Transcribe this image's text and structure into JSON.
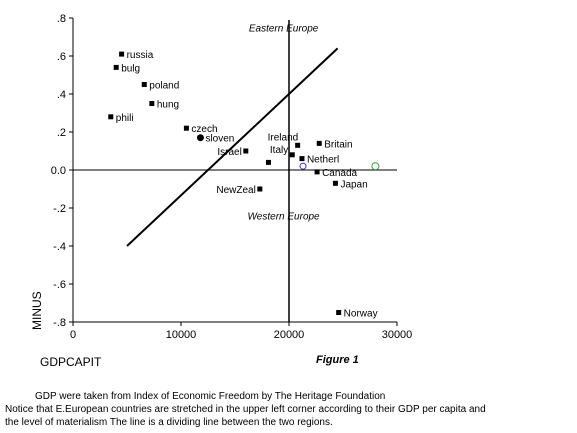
{
  "chart_data": {
    "type": "scatter",
    "xlabel": "GDPCAPIT",
    "ylabel": "MINUS",
    "xlim": [
      0,
      30000
    ],
    "ylim": [
      -0.8,
      0.8
    ],
    "x_ticks": [
      "0",
      "10000",
      "20000",
      "30000"
    ],
    "x_tick_values": [
      0,
      10000,
      20000,
      30000
    ],
    "y_ticks": [
      ".8",
      ".6",
      ".4",
      ".2",
      "0.0",
      "-.2",
      "-.4",
      "-.6",
      "-.8"
    ],
    "y_tick_values": [
      0.8,
      0.6,
      0.4,
      0.2,
      0.0,
      -0.2,
      -0.4,
      -0.6,
      -0.8
    ],
    "points": [
      {
        "label": "russia",
        "x": 4500,
        "y": 0.61
      },
      {
        "label": "bulg",
        "x": 4000,
        "y": 0.54
      },
      {
        "label": "poland",
        "x": 6600,
        "y": 0.45
      },
      {
        "label": "hung",
        "x": 7300,
        "y": 0.35
      },
      {
        "label": "phili",
        "x": 3500,
        "y": 0.28
      },
      {
        "label": "czech",
        "x": 10500,
        "y": 0.22
      },
      {
        "label": "sloven",
        "x": 11800,
        "y": 0.17,
        "marker": "circle"
      },
      {
        "label": "Ireland",
        "x": 20800,
        "y": 0.13
      },
      {
        "label": "Britain",
        "x": 22800,
        "y": 0.14
      },
      {
        "label": "Italy",
        "x": 20300,
        "y": 0.08
      },
      {
        "label": "Netherl",
        "x": 21200,
        "y": 0.06
      },
      {
        "label": "Israel",
        "x": 16000,
        "y": 0.1
      },
      {
        "label": "",
        "x": 18100,
        "y": 0.04
      },
      {
        "label": "Canada",
        "x": 22600,
        "y": -0.01
      },
      {
        "label": "",
        "x": 21300,
        "y": 0.02,
        "marker": "hollow-blue"
      },
      {
        "label": "",
        "x": 28000,
        "y": 0.02,
        "marker": "hollow-green"
      },
      {
        "label": "NewZeal",
        "x": 17300,
        "y": -0.1
      },
      {
        "label": "Japan",
        "x": 24300,
        "y": -0.07
      },
      {
        "label": "Norway",
        "x": 24600,
        "y": -0.75
      }
    ],
    "dividing_line": {
      "x": [
        5000,
        24500
      ],
      "y": [
        -0.4,
        0.64
      ]
    },
    "reference_lines": {
      "x": 20000,
      "y": 0.0
    },
    "region_labels": [
      {
        "text": "Eastern Europe",
        "x": 19500,
        "y": 0.73
      },
      {
        "text": "Western Europe",
        "x": 19500,
        "y": -0.26
      }
    ],
    "colors": {
      "blue_marker": "#3333cc",
      "green_marker": "#33aa33",
      "ink": "#000000"
    }
  },
  "figure_label": "Figure 1",
  "caption_lines": [
    "GDP were taken from Index of Economic Freedom by The Heritage Foundation",
    "Notice that E.European countries are stretched in the upper left corner according to their GDP per capita and",
    "the level of materialism   The line is a dividing line between the two regions."
  ]
}
